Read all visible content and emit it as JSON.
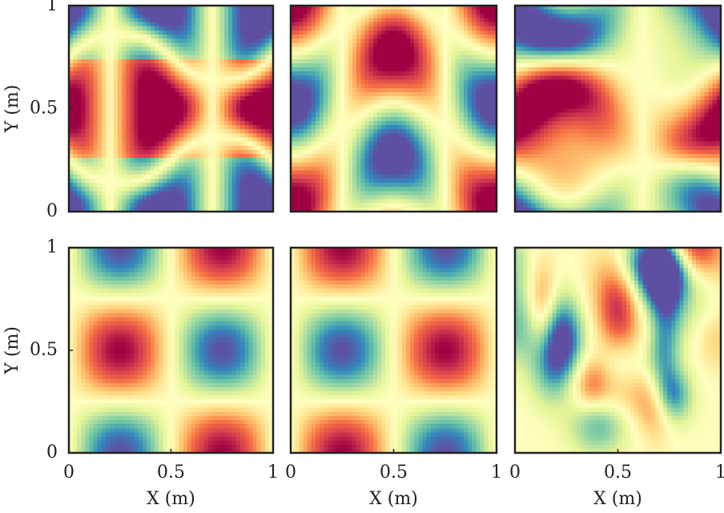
{
  "chart_data": [
    {
      "type": "heatmap",
      "xlim": [
        0,
        1
      ],
      "ylim": [
        0,
        1
      ],
      "yticks": [
        0,
        0.5,
        1
      ],
      "ylabel": "Y (m)"
    },
    {
      "type": "heatmap",
      "xlim": [
        0,
        1
      ],
      "ylim": [
        0,
        1
      ]
    },
    {
      "type": "heatmap",
      "xlim": [
        0,
        1
      ],
      "ylim": [
        0,
        1
      ]
    },
    {
      "type": "heatmap",
      "xlim": [
        0,
        1
      ],
      "ylim": [
        0,
        1
      ],
      "xticks": [
        0,
        0.5,
        1
      ],
      "yticks": [
        0,
        0.5,
        1
      ],
      "xlabel": "X (m)",
      "ylabel": "Y (m)"
    },
    {
      "type": "heatmap",
      "xlim": [
        0,
        1
      ],
      "ylim": [
        0,
        1
      ],
      "xticks": [
        0,
        0.5,
        1
      ],
      "xlabel": "X (m)"
    },
    {
      "type": "heatmap",
      "xlim": [
        0,
        1
      ],
      "ylim": [
        0,
        1
      ],
      "xticks": [
        0,
        0.5,
        1
      ],
      "xlabel": "X (m)"
    }
  ]
}
